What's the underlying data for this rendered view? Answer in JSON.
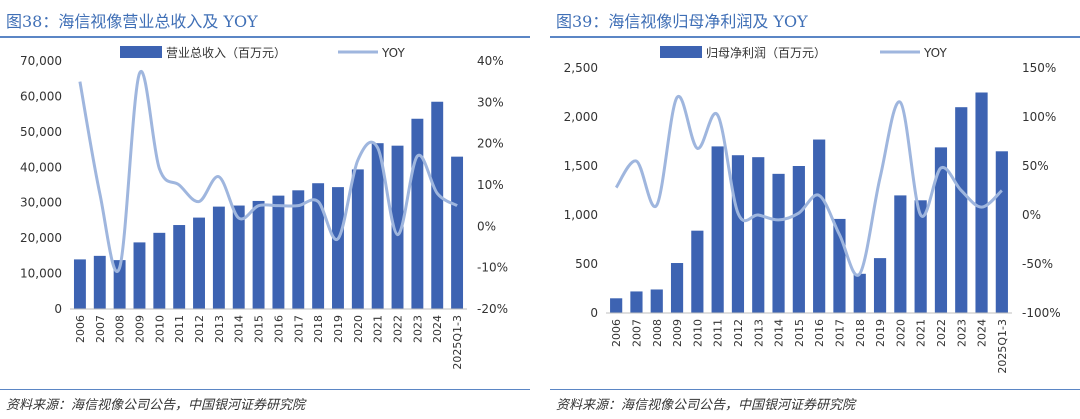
{
  "left": {
    "title": "图38：海信视像营业总收入及 YOY",
    "source": "资料来源：海信视像公司公告，中国银河证券研究院",
    "chart_data": {
      "type": "bar",
      "categories": [
        "2006",
        "2007",
        "2008",
        "2009",
        "2010",
        "2011",
        "2012",
        "2013",
        "2014",
        "2015",
        "2016",
        "2017",
        "2018",
        "2019",
        "2020",
        "2021",
        "2022",
        "2023",
        "2024",
        "2025Q1-3"
      ],
      "series": [
        {
          "name": "营业总收入（百万元）",
          "type": "bar",
          "axis": "left",
          "color": "#3d63b2",
          "values": [
            14000,
            15000,
            13800,
            18800,
            21500,
            23700,
            25800,
            28900,
            29200,
            30500,
            32000,
            33500,
            35500,
            34400,
            39400,
            46800,
            46100,
            53700,
            58500,
            43000
          ]
        },
        {
          "name": "YOY",
          "type": "line",
          "axis": "right",
          "color": "#9fb6de",
          "values": [
            35,
            8,
            -10,
            37,
            14,
            10,
            6,
            12,
            2,
            5,
            5,
            5,
            6,
            -3,
            16,
            19,
            -2,
            17,
            8,
            5
          ]
        }
      ],
      "ylim_left": [
        0,
        70000
      ],
      "ylim_right": [
        -20,
        40
      ],
      "yticks_left": [
        "0",
        "10,000",
        "20,000",
        "30,000",
        "40,000",
        "50,000",
        "60,000",
        "70,000"
      ],
      "yticks_right": [
        "-20%",
        "-10%",
        "0%",
        "10%",
        "20%",
        "30%",
        "40%"
      ],
      "legend": [
        "营业总收入（百万元）",
        "YOY"
      ]
    }
  },
  "right": {
    "title": "图39：海信视像归母净利润及 YOY",
    "source": "资料来源：海信视像公司公告，中国银河证券研究院",
    "chart_data": {
      "type": "bar",
      "categories": [
        "2006",
        "2007",
        "2008",
        "2009",
        "2010",
        "2011",
        "2012",
        "2013",
        "2014",
        "2015",
        "2016",
        "2017",
        "2018",
        "2019",
        "2020",
        "2021",
        "2022",
        "2023",
        "2024",
        "2025Q1-3"
      ],
      "series": [
        {
          "name": "归母净利润（百万元）",
          "type": "bar",
          "axis": "left",
          "color": "#3d63b2",
          "values": [
            150,
            220,
            240,
            510,
            840,
            1700,
            1610,
            1590,
            1420,
            1500,
            1770,
            960,
            400,
            560,
            1200,
            1150,
            1690,
            2100,
            2250,
            1650
          ]
        },
        {
          "name": "YOY",
          "type": "line",
          "axis": "right",
          "color": "#9fb6de",
          "values": [
            28,
            55,
            10,
            120,
            68,
            102,
            2,
            0,
            -5,
            2,
            20,
            -20,
            -60,
            38,
            115,
            0,
            48,
            25,
            8,
            25
          ]
        }
      ],
      "ylim_left": [
        0,
        2500
      ],
      "ylim_right": [
        -100,
        150
      ],
      "yticks_left": [
        "0",
        "500",
        "1,000",
        "1,500",
        "2,000",
        "2,500"
      ],
      "yticks_right": [
        "-100%",
        "-50%",
        "0%",
        "50%",
        "100%",
        "150%"
      ],
      "legend": [
        "归母净利润（百万元）",
        "YOY"
      ]
    }
  }
}
